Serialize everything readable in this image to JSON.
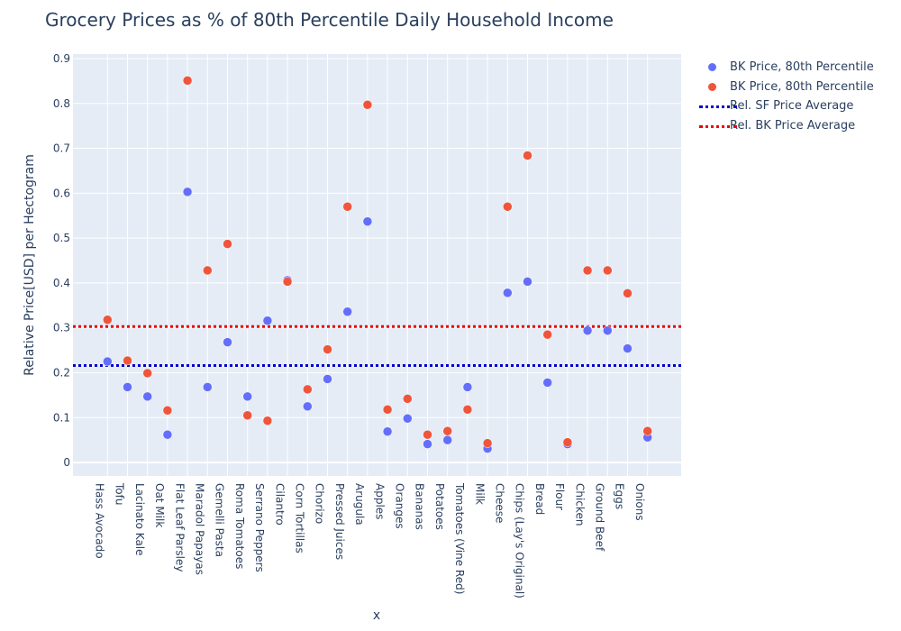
{
  "chart_data": {
    "type": "scatter",
    "title": "Grocery Prices as % of 80th Percentile Daily Household Income",
    "xlabel": "x",
    "ylabel": "Relative Price[USD] per Hectogram",
    "ylim": [
      -0.03,
      0.91
    ],
    "yticks": [
      "0",
      "0.1",
      "0.2",
      "0.3",
      "0.4",
      "0.5",
      "0.6",
      "0.7",
      "0.8",
      "0.9"
    ],
    "grid": true,
    "legend_position": "top-right",
    "categories": [
      "Hass Avocado",
      "Tofu",
      "Lacinato Kale",
      "Oat Milk",
      "Flat Leaf Parsley",
      "Maradol Papayas",
      "Gemelli Pasta",
      "Roma Tomatoes",
      "Serrano Peppers",
      "Cilantro",
      "Corn Tortillas",
      "Chorizo",
      "Pressed Juices",
      "Arugula",
      "Apples",
      "Oranges",
      "Bananas",
      "Potatoes",
      "Tomatoes (Vine Red)",
      "Milk",
      "Cheese",
      "Chips (Lay's Original)",
      "Bread",
      "Flour",
      "Chicken",
      "Ground Beef",
      "Eggs",
      "Onions"
    ],
    "series": [
      {
        "name": "BK Price, 80th Percentile",
        "color": "#636efa",
        "values": [
          0.225,
          0.168,
          0.147,
          0.062,
          0.603,
          0.168,
          0.268,
          0.147,
          0.316,
          0.406,
          0.125,
          0.186,
          0.336,
          0.537,
          0.069,
          0.098,
          0.041,
          0.05,
          0.168,
          0.031,
          0.378,
          0.403,
          0.178,
          0.041,
          0.294,
          0.294,
          0.254,
          0.056
        ]
      },
      {
        "name": "BK Price, 80th Percentile",
        "color": "#ef553b",
        "values": [
          0.318,
          0.227,
          0.199,
          0.116,
          0.851,
          0.428,
          0.487,
          0.105,
          0.093,
          0.403,
          0.163,
          0.252,
          0.57,
          0.797,
          0.118,
          0.142,
          0.062,
          0.07,
          0.118,
          0.043,
          0.57,
          0.684,
          0.285,
          0.045,
          0.428,
          0.428,
          0.377,
          0.07
        ]
      }
    ],
    "reference_lines": [
      {
        "name": "Rel. SF Price Average",
        "color": "#0000cc",
        "y": 0.216
      },
      {
        "name": "Rel. BK Price Average",
        "color": "#ee0000",
        "y": 0.303
      }
    ]
  }
}
